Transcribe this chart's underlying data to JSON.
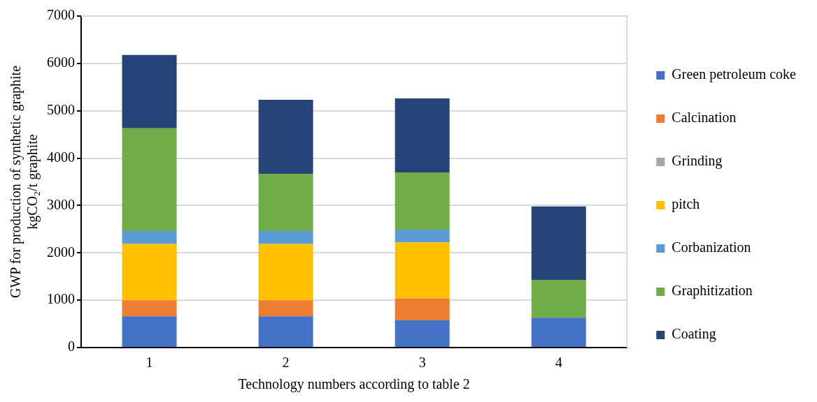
{
  "chart_data": {
    "type": "bar",
    "stacked": true,
    "xlabel": "Technology numbers according to table 2",
    "ylabel": "GWP for production of synthetic graphite\nkgCO₂/t graphite",
    "categories": [
      "1",
      "2",
      "3",
      "4"
    ],
    "ylim": [
      0,
      7000
    ],
    "yticks": [
      0,
      1000,
      2000,
      3000,
      4000,
      5000,
      6000,
      7000
    ],
    "grid": "y",
    "legend": "right",
    "series": [
      {
        "name": "Green petroleum coke",
        "color": "#4472c4",
        "values": [
          660,
          660,
          580,
          630
        ]
      },
      {
        "name": "Calcination",
        "color": "#ed7d31",
        "values": [
          340,
          340,
          460,
          0
        ]
      },
      {
        "name": "Grinding",
        "color": "#a5a5a5",
        "values": [
          0,
          0,
          0,
          0
        ]
      },
      {
        "name": "pitch",
        "color": "#ffc000",
        "values": [
          1190,
          1190,
          1180,
          0
        ]
      },
      {
        "name": "Corbanization",
        "color": "#5b9bd5",
        "values": [
          270,
          270,
          270,
          0
        ]
      },
      {
        "name": "Graphitization",
        "color": "#70ad47",
        "values": [
          2170,
          1210,
          1210,
          800
        ]
      },
      {
        "name": "Coating",
        "color": "#264478",
        "values": [
          1550,
          1560,
          1560,
          1550
        ]
      }
    ]
  }
}
